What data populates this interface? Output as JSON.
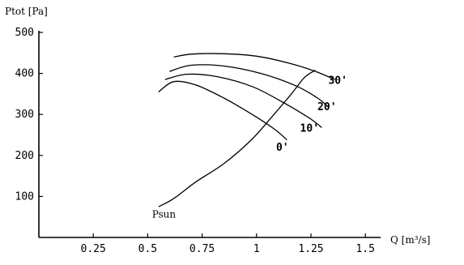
{
  "chart_data": {
    "type": "line",
    "ylabel": "Ptot [Pa]",
    "xlabel": "Q  [m³/s]",
    "x_ticks": [
      "0.25",
      "0.5",
      "0.75",
      "1",
      "1.25",
      "1.5"
    ],
    "y_ticks": [
      "100",
      "200",
      "300",
      "400",
      "500"
    ],
    "xlim": [
      0,
      1.57
    ],
    "ylim": [
      0,
      500
    ],
    "grid": false,
    "series": [
      {
        "name": "0°",
        "label": "0'",
        "x": [
          0.55,
          0.62,
          0.72,
          0.85,
          0.98,
          1.08,
          1.14
        ],
        "y": [
          355,
          380,
          372,
          340,
          300,
          265,
          238
        ]
      },
      {
        "name": "10°",
        "label": "10'",
        "x": [
          0.58,
          0.68,
          0.82,
          0.98,
          1.12,
          1.24,
          1.3
        ],
        "y": [
          385,
          398,
          392,
          368,
          330,
          292,
          268
        ]
      },
      {
        "name": "20°",
        "label": "20'",
        "x": [
          0.6,
          0.7,
          0.85,
          1.02,
          1.18,
          1.28,
          1.33
        ],
        "y": [
          405,
          420,
          418,
          400,
          370,
          340,
          318
        ]
      },
      {
        "name": "30°",
        "label": "30'",
        "x": [
          0.62,
          0.7,
          0.85,
          1.0,
          1.15,
          1.27,
          1.36
        ],
        "y": [
          440,
          447,
          448,
          442,
          425,
          405,
          385
        ]
      },
      {
        "name": "Psun",
        "label": "Psun",
        "x": [
          0.55,
          0.62,
          0.72,
          0.85,
          0.98,
          1.08,
          1.16,
          1.22,
          1.27
        ],
        "y": [
          75,
          95,
          135,
          180,
          240,
          300,
          350,
          390,
          408
        ]
      }
    ],
    "label_anchor_points": [
      {
        "label": "30'",
        "x": 1.33,
        "y": 375
      },
      {
        "label": "20'",
        "x": 1.28,
        "y": 310
      },
      {
        "label": "10'",
        "x": 1.2,
        "y": 258
      },
      {
        "label": "0'",
        "x": 1.09,
        "y": 211
      },
      {
        "label": "Psun",
        "x": 0.52,
        "y": 48
      }
    ]
  }
}
